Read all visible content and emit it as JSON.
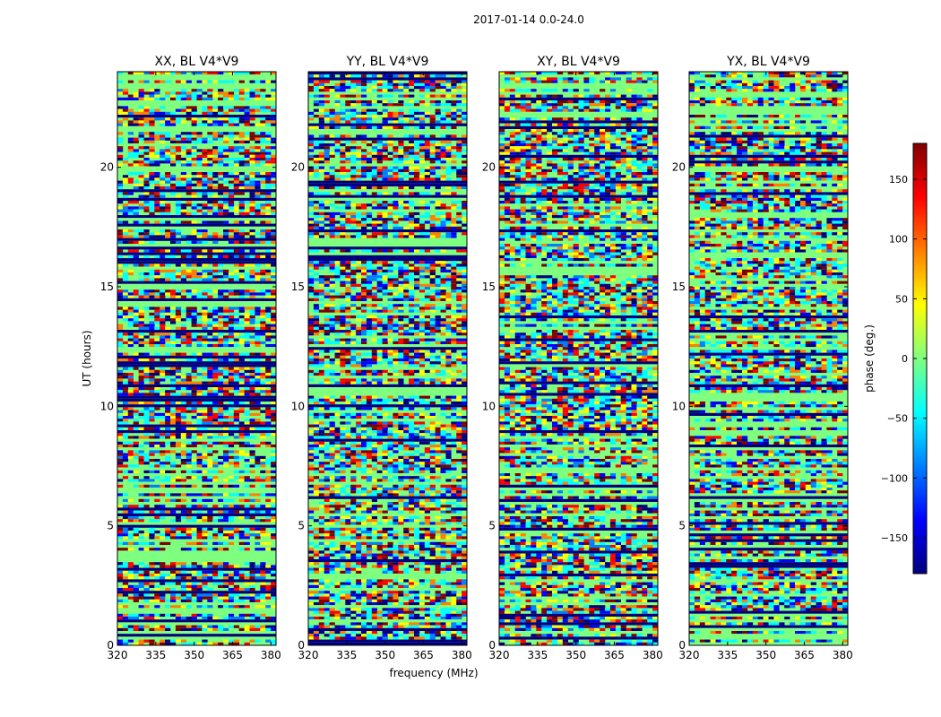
{
  "figure_title": "2017-01-14 0.0-24.0",
  "colors": {
    "jet": [
      "#00007f",
      "#0000ff",
      "#007fff",
      "#00ffff",
      "#7fff7f",
      "#ffff00",
      "#ff7f00",
      "#ff0000",
      "#7f0000"
    ],
    "background_band": "#7fff7f",
    "dark_band": "#00007f"
  },
  "chart_data": [
    {
      "type": "heatmap",
      "title": "XX, BL V4*V9",
      "xlabel": "frequency (MHz)",
      "ylabel": "UT (hours)",
      "xlim": [
        320,
        382
      ],
      "ylim": [
        0,
        24
      ],
      "xticks": [
        320,
        335,
        350,
        365,
        380
      ],
      "yticks": [
        0,
        5,
        10,
        15,
        20
      ],
      "value_range": [
        -180,
        180
      ]
    },
    {
      "type": "heatmap",
      "title": "YY, BL V4*V9",
      "xlabel": "frequency (MHz)",
      "ylabel": "UT (hours)",
      "xlim": [
        320,
        382
      ],
      "ylim": [
        0,
        24
      ],
      "xticks": [
        320,
        335,
        350,
        365,
        380
      ],
      "yticks": [
        0,
        5,
        10,
        15,
        20
      ],
      "value_range": [
        -180,
        180
      ]
    },
    {
      "type": "heatmap",
      "title": "XY, BL V4*V9",
      "xlabel": "frequency (MHz)",
      "ylabel": "UT (hours)",
      "xlim": [
        320,
        382
      ],
      "ylim": [
        0,
        24
      ],
      "xticks": [
        320,
        335,
        350,
        365,
        380
      ],
      "yticks": [
        0,
        5,
        10,
        15,
        20
      ],
      "value_range": [
        -180,
        180
      ]
    },
    {
      "type": "heatmap",
      "title": "YX, BL V4*V9",
      "xlabel": "frequency (MHz)",
      "ylabel": "UT (hours)",
      "xlim": [
        320,
        382
      ],
      "ylim": [
        0,
        24
      ],
      "xticks": [
        320,
        335,
        350,
        365,
        380
      ],
      "yticks": [
        0,
        5,
        10,
        15,
        20
      ],
      "value_range": [
        -180,
        180
      ]
    }
  ],
  "axis_labels": {
    "xlabel": "frequency (MHz)",
    "ylabel": "UT (hours)"
  },
  "colorbar": {
    "label": "phase (deg.)",
    "range": [
      -180,
      180
    ],
    "ticks": [
      150,
      100,
      50,
      0,
      -50,
      -100,
      -150
    ],
    "tick_labels": [
      "150",
      "100",
      "50",
      "0",
      "−50",
      "−100",
      "−150"
    ]
  }
}
